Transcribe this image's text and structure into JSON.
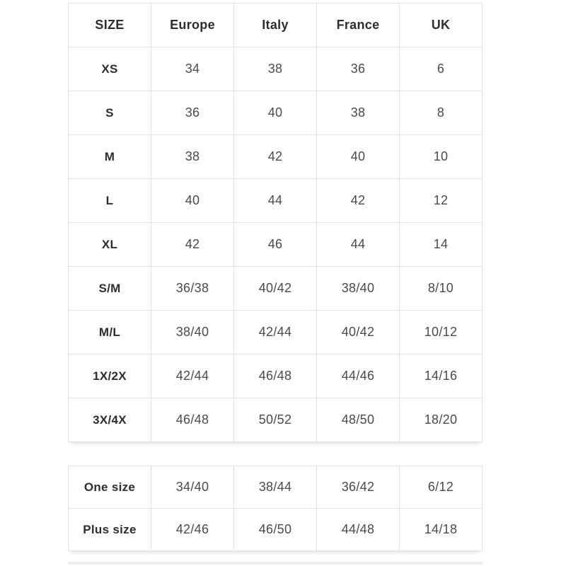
{
  "size_table": {
    "headers": [
      "SIZE",
      "Europe",
      "Italy",
      "France",
      "UK"
    ],
    "rows": [
      {
        "label": "XS",
        "values": [
          "34",
          "38",
          "36",
          "6"
        ]
      },
      {
        "label": "S",
        "values": [
          "36",
          "40",
          "38",
          "8"
        ]
      },
      {
        "label": "M",
        "values": [
          "38",
          "42",
          "40",
          "10"
        ]
      },
      {
        "label": "L",
        "values": [
          "40",
          "44",
          "42",
          "12"
        ]
      },
      {
        "label": "XL",
        "values": [
          "42",
          "46",
          "44",
          "14"
        ]
      },
      {
        "label": "S/M",
        "values": [
          "36/38",
          "40/42",
          "38/40",
          "8/10"
        ]
      },
      {
        "label": "M/L",
        "values": [
          "38/40",
          "42/44",
          "40/42",
          "10/12"
        ]
      },
      {
        "label": "1X/2X",
        "values": [
          "42/44",
          "46/48",
          "44/46",
          "14/16"
        ]
      },
      {
        "label": "3X/4X",
        "values": [
          "46/48",
          "50/52",
          "48/50",
          "18/20"
        ]
      }
    ]
  },
  "special_table": {
    "rows": [
      {
        "label": "One size",
        "values": [
          "34/40",
          "38/44",
          "36/42",
          "6/12"
        ]
      },
      {
        "label": "Plus size",
        "values": [
          "42/46",
          "46/50",
          "44/48",
          "14/18"
        ]
      }
    ]
  },
  "colors": {
    "border": "#e2e2e2",
    "header_text": "#2d2d2d",
    "value_text": "#4a4a4a",
    "background": "#ffffff"
  }
}
